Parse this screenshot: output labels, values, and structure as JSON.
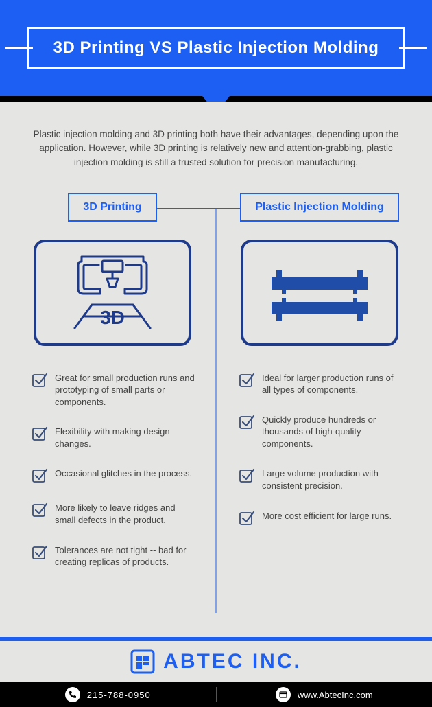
{
  "colors": {
    "header_bg": "#1c5ff2",
    "accent": "#1c5ff2",
    "content_bg": "#e5e5e3",
    "text": "#444444",
    "icon_border": "#1e3a8a",
    "mold_fill": "#1f4da8",
    "check_stroke": "#3a4f7a"
  },
  "header": {
    "title": "3D Printing VS Plastic Injection Molding"
  },
  "intro": "Plastic injection molding and 3D printing both have their advantages, depending upon the application. However, while 3D printing is relatively new and attention-grabbing, plastic injection molding is still a trusted solution for precision manufacturing.",
  "left": {
    "label": "3D Printing",
    "bullets": [
      "Great for small production runs and prototyping of small parts or components.",
      "Flexibility with making design changes.",
      "Occasional glitches in the process.",
      "More likely to leave ridges and small defects in the product.",
      "Tolerances are not tight -- bad for creating replicas of products."
    ]
  },
  "right": {
    "label": "Plastic Injection Molding",
    "bullets": [
      "Ideal for larger production runs of all types of components.",
      "Quickly produce hundreds or thousands of high-quality components.",
      "Large volume production with consistent precision.",
      "More cost efficient for large runs."
    ]
  },
  "logo": {
    "text": "ABTEC INC."
  },
  "footer": {
    "phone": "215-788-0950",
    "url": "www.AbtecInc.com"
  }
}
